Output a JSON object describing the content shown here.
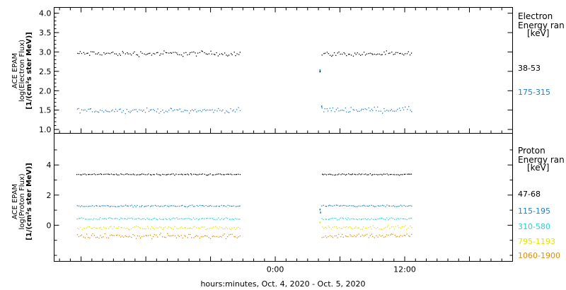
{
  "chart_data": [
    {
      "type": "scatter",
      "panel": "electron",
      "ylabel_lines": [
        "ACE EPAM",
        "log(Electron Flux)",
        "[1/(cm²s ster MeV)]"
      ],
      "ylim": [
        0.9,
        4.15
      ],
      "yticks": [
        1.0,
        1.5,
        2.0,
        2.5,
        3.0,
        3.5,
        4.0
      ],
      "ytick_labels": [
        "1.0",
        "1.5",
        "2.0",
        "2.5",
        "3.0",
        "3.5",
        "4.0"
      ],
      "legend_title": [
        "Electron",
        "Energy ran",
        "[keV]"
      ],
      "series": [
        {
          "name": "38-53",
          "color": "#000000",
          "segments": [
            {
              "x_start": -18.4,
              "x_end": -3.3,
              "mean": 2.97,
              "spread": 0.06
            },
            {
              "x_start": 4.3,
              "x_end": 12.6,
              "mean": 2.96,
              "spread": 0.05
            }
          ],
          "extra_points": [
            {
              "x": 4.1,
              "y": 2.52
            }
          ]
        },
        {
          "name": "175-315",
          "color": "#1f7fd0",
          "segments": [
            {
              "x_start": -18.4,
              "x_end": -3.3,
              "mean": 1.5,
              "spread": 0.05
            },
            {
              "x_start": 4.3,
              "x_end": 12.6,
              "mean": 1.52,
              "spread": 0.06
            }
          ],
          "extra_points": [
            {
              "x": 4.1,
              "y": 2.55
            },
            {
              "x": 4.25,
              "y": 1.62
            }
          ]
        }
      ]
    },
    {
      "type": "scatter",
      "panel": "proton",
      "ylabel_lines": [
        "ACE EPAM",
        "log(Proton Flux)",
        "[1/(cm²s ster MeV)]"
      ],
      "ylim": [
        -2.4,
        6.1
      ],
      "yticks": [
        0,
        2,
        4
      ],
      "ytick_labels": [
        "0",
        "2",
        "4"
      ],
      "minor_yticks": [
        -2,
        -1,
        1,
        3,
        5
      ],
      "legend_title": [
        "Proton",
        "Energy ran",
        "[keV]"
      ],
      "series": [
        {
          "name": "47-68",
          "color": "#000000",
          "segments": [
            {
              "x_start": -18.4,
              "x_end": -3.3,
              "mean": 3.4,
              "spread": 0.04
            },
            {
              "x_start": 4.3,
              "x_end": 12.6,
              "mean": 3.4,
              "spread": 0.04
            }
          ]
        },
        {
          "name": "115-195",
          "color": "#1f7fd0",
          "segments": [
            {
              "x_start": -18.4,
              "x_end": -3.3,
              "mean": 1.3,
              "spread": 0.05
            },
            {
              "x_start": 4.3,
              "x_end": 12.6,
              "mean": 1.3,
              "spread": 0.05
            }
          ],
          "extra_points": [
            {
              "x": 4.1,
              "y": 1.1
            },
            {
              "x": 4.15,
              "y": 0.9
            }
          ]
        },
        {
          "name": "310-580",
          "color": "#22d4d4",
          "segments": [
            {
              "x_start": -18.4,
              "x_end": -3.3,
              "mean": 0.45,
              "spread": 0.06
            },
            {
              "x_start": 4.3,
              "x_end": 12.6,
              "mean": 0.45,
              "spread": 0.06
            }
          ]
        },
        {
          "name": "795-1193",
          "color": "#e3e300",
          "segments": [
            {
              "x_start": -18.4,
              "x_end": -3.3,
              "mean": -0.15,
              "spread": 0.1
            },
            {
              "x_start": 4.3,
              "x_end": 12.6,
              "mean": -0.12,
              "spread": 0.1
            }
          ],
          "extra_points": [
            {
              "x": 4.1,
              "y": 0.25
            }
          ]
        },
        {
          "name": "1060-1900",
          "color": "#e88a00",
          "segments": [
            {
              "x_start": -18.4,
              "x_end": -3.3,
              "mean": -0.7,
              "spread": 0.14
            },
            {
              "x_start": 4.3,
              "x_end": 12.6,
              "mean": -0.68,
              "spread": 0.14
            }
          ]
        }
      ]
    }
  ],
  "x_axis": {
    "xlim": [
      -20.5,
      22.0
    ],
    "major_ticks": [
      0,
      12
    ],
    "major_labels": [
      "0:00",
      "12:00"
    ],
    "minor_step": 1,
    "title": "hours:minutes, Oct.  4, 2020 - Oct.  5, 2020"
  }
}
